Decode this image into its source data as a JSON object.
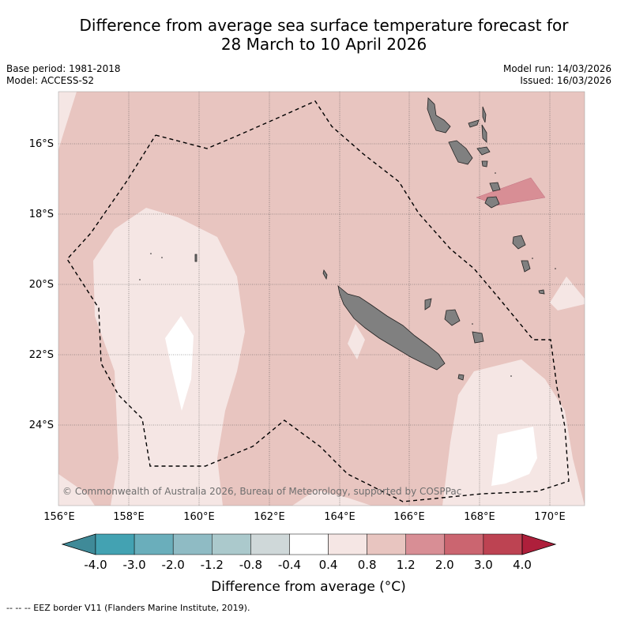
{
  "title_line1": "Difference from average sea surface temperature forecast for",
  "title_line2": "28 March to 10 April 2026",
  "base_period": "Base period: 1981-2018",
  "model": "Model: ACCESS-S2",
  "model_run": "Model run: 14/03/2026",
  "issued": "Issued: 16/03/2026",
  "lat_labels": [
    "16°S",
    "18°S",
    "20°S",
    "22°S",
    "24°S"
  ],
  "lon_labels": [
    "156°E",
    "158°E",
    "160°E",
    "162°E",
    "164°E",
    "166°E",
    "168°E",
    "170°E"
  ],
  "copyright": "© Commonwealth of Australia 2026, Bureau of Meteorology, supported by COSPPac",
  "colorbar": {
    "ticks": [
      "-4.0",
      "-3.0",
      "-2.0",
      "-1.2",
      "-0.8",
      "-0.4",
      "0.4",
      "0.8",
      "1.2",
      "2.0",
      "3.0",
      "4.0"
    ],
    "colors": [
      "#43a2b2",
      "#6aaebb",
      "#8fbbc4",
      "#abc9cc",
      "#cfd8d9",
      "#ffffff",
      "#f5e6e4",
      "#e8c5c0",
      "#d88e95",
      "#cb6570",
      "#bd4352"
    ],
    "under_color": "#3f8a98",
    "over_color": "#ae1f3b",
    "label": "Difference from average (°C)"
  },
  "colors": {
    "warm_low": "#e8c5c0",
    "near_zero": "#f5e6e4",
    "warm_mid": "#d88e95",
    "land": "#808080"
  },
  "footer": "--  --  -- EEZ border V11 (Flanders Marine Institute, 2019)."
}
